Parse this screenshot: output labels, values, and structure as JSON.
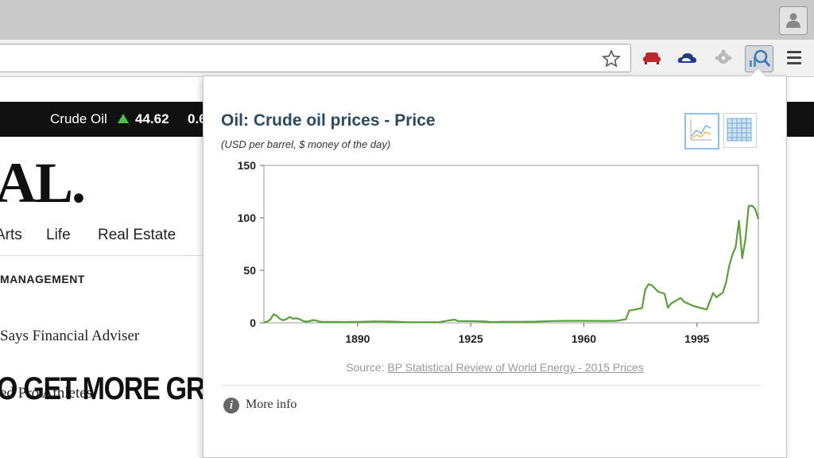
{
  "browser": {
    "menu_icon": "hamburger-icon",
    "extensions": [
      "couch-icon",
      "cloud-icon",
      "puzzle-icon",
      "chart-search-icon"
    ]
  },
  "page": {
    "ticker": {
      "name": "Crude Oil",
      "value": "44.62",
      "partial_value": "0.6",
      "arrow_color": "#4fbf49"
    },
    "masthead": "AL.",
    "nav": [
      "Arts",
      "Life",
      "Real Estate"
    ],
    "kicker": "MANAGEMENT",
    "headline": [
      "Says Financial Adviser",
      "ed Pro Athletes"
    ],
    "banner": "O GET MORE GREAT"
  },
  "popup": {
    "title": "Oil: Crude oil prices - Price",
    "subtitle": "(USD per barrel, $ money of the day)",
    "source_prefix": "Source: ",
    "source_link": "BP Statistical Review of World Energy - 2015 Prices",
    "more_info": "More info",
    "colors": {
      "title": "#2b4a63",
      "line": "#5aa03a"
    }
  },
  "chart_data": {
    "type": "line",
    "title": "",
    "xlabel": "",
    "ylabel": "",
    "xlim": [
      1861,
      2014
    ],
    "ylim": [
      0,
      150
    ],
    "xticks": [
      1890,
      1925,
      1960,
      1995
    ],
    "yticks": [
      0,
      50,
      100,
      150
    ],
    "grid": false,
    "series": [
      {
        "x": [
          1861,
          1862,
          1863,
          1864,
          1865,
          1866,
          1867,
          1868,
          1869,
          1870,
          1871,
          1872,
          1873,
          1874,
          1875,
          1876,
          1877,
          1878,
          1879,
          1880,
          1882,
          1884,
          1886,
          1888,
          1890,
          1895,
          1900,
          1905,
          1910,
          1915,
          1920,
          1921,
          1925,
          1930,
          1931,
          1935,
          1940,
          1945,
          1950,
          1955,
          1960,
          1965,
          1970,
          1973,
          1974,
          1978,
          1979,
          1980,
          1981,
          1982,
          1983,
          1984,
          1985,
          1986,
          1987,
          1990,
          1991,
          1994,
          1998,
          2000,
          2001,
          2003,
          2004,
          2005,
          2006,
          2007,
          2008,
          2009,
          2010,
          2011,
          2012,
          2013,
          2014
        ],
        "y": [
          0.5,
          1.1,
          3.2,
          8.1,
          6.6,
          3.7,
          2.4,
          3.6,
          5.6,
          3.9,
          4.3,
          3.6,
          1.8,
          1.2,
          1.4,
          2.6,
          2.4,
          1.2,
          0.9,
          0.9,
          0.8,
          0.8,
          0.7,
          0.9,
          0.9,
          1.4,
          1.2,
          0.6,
          0.6,
          0.6,
          3.1,
          1.7,
          1.7,
          1.2,
          0.7,
          1.0,
          1.0,
          1.1,
          1.7,
          1.9,
          1.9,
          1.8,
          1.8,
          3.3,
          11.6,
          14.0,
          31.6,
          36.8,
          35.9,
          32.9,
          29.6,
          28.8,
          27.6,
          14.4,
          18.4,
          23.7,
          20.0,
          15.9,
          12.7,
          28.5,
          24.4,
          28.8,
          38.3,
          54.5,
          65.1,
          72.4,
          97.3,
          61.7,
          79.5,
          111.3,
          111.7,
          108.7,
          98.9
        ]
      }
    ]
  }
}
